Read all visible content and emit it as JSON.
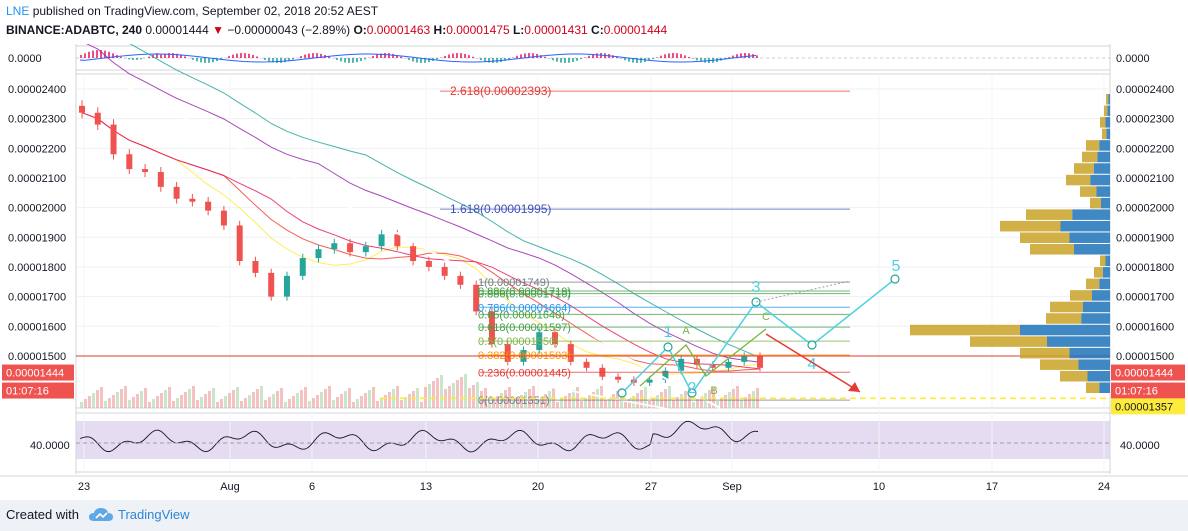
{
  "header": {
    "publisher": "LNE",
    "published_text": "published on TradingView.com, September 02, 2018 20:52 AEST",
    "symbol": "BINANCE:ADABTC, 240",
    "last": "0.00001444",
    "change_arrow": "▼",
    "change": "−0.00000043 (−2.89%)",
    "o_label": "O:",
    "o_value": "0.00001463",
    "h_label": "H:",
    "h_value": "0.00001475",
    "l_label": "L:",
    "l_value": "0.00001431",
    "c_label": "C:",
    "c_value": "0.00001444"
  },
  "footer": {
    "created_with": "Created with",
    "brand": "TradingView"
  },
  "chart_data": {
    "type": "candlestick",
    "title": "BINANCE:ADABTC, 240",
    "y_ticks": [
      "0.00002400",
      "0.00002300",
      "0.00002200",
      "0.00002100",
      "0.00002000",
      "0.00001900",
      "0.00001800",
      "0.00001700",
      "0.00001600",
      "0.00001500"
    ],
    "ylim": [
      1.4e-05,
      2.43e-05
    ],
    "x_ticks": [
      "23",
      "Aug",
      "6",
      "13",
      "20",
      "27",
      "Sep",
      "10",
      "17",
      "24"
    ],
    "macd_ticks": [
      "0.0000",
      "0.0000"
    ],
    "rsi_ticks": [
      "40.0000",
      "40.0000"
    ],
    "price_tags": [
      {
        "label": "0.00001444",
        "kind": "last",
        "color": "#ef5350"
      },
      {
        "label": "01:07:16",
        "kind": "countdown",
        "color": "#ef5350"
      },
      {
        "label": "0.00001357",
        "kind": "target",
        "color": "#ffeb3b"
      }
    ],
    "close_series": [
      2.32e-05,
      2.28e-05,
      2.18e-05,
      2.13e-05,
      2.12e-05,
      2.07e-05,
      2.03e-05,
      2.02e-05,
      1.99e-05,
      1.94e-05,
      1.82e-05,
      1.78e-05,
      1.7e-05,
      1.77e-05,
      1.83e-05,
      1.86e-05,
      1.88e-05,
      1.85e-05,
      1.87e-05,
      1.91e-05,
      1.87e-05,
      1.82e-05,
      1.8e-05,
      1.77e-05,
      1.74e-05,
      1.65e-05,
      1.54e-05,
      1.48e-05,
      1.52e-05,
      1.58e-05,
      1.54e-05,
      1.48e-05,
      1.46e-05,
      1.43e-05,
      1.42e-05,
      1.41e-05,
      1.42e-05,
      1.45e-05,
      1.49e-05,
      1.47e-05,
      1.46e-05,
      1.48e-05,
      1.5e-05,
      1.46e-05
    ],
    "fib_upper": [
      {
        "label": "2.618(0.00002393)",
        "value": 2.393e-05,
        "color": "#e53935"
      },
      {
        "label": "1.618(0.00001995)",
        "value": 1.995e-05,
        "color": "#3f51b5"
      }
    ],
    "fib_retracement": [
      {
        "label": "1(0.00001749)",
        "value": 1.749e-05,
        "color": "#787b86"
      },
      {
        "label": "0.886(0.00001719)",
        "value": 1.719e-05,
        "color": "#43a047"
      },
      {
        "label": "0.886(0.00001710)",
        "value": 1.71e-05,
        "color": "#43a047"
      },
      {
        "label": "0.786(0.00001664)",
        "value": 1.664e-05,
        "color": "#2196f3"
      },
      {
        "label": "0.65(0.00001640)",
        "value": 1.64e-05,
        "color": "#43a047"
      },
      {
        "label": "0.618(0.00001597)",
        "value": 1.597e-05,
        "color": "#43a047"
      },
      {
        "label": "0.5(0.00001550)",
        "value": 1.55e-05,
        "color": "#7cb342"
      },
      {
        "label": "0.382(0.00001503)",
        "value": 1.503e-05,
        "color": "#ff9800"
      },
      {
        "label": "0.236(0.00001445)",
        "value": 1.445e-05,
        "color": "#e53935"
      },
      {
        "label": "0(0.00001351)",
        "value": 1.351e-05,
        "color": "#787b86"
      }
    ],
    "wave_labels": [
      "1",
      "2",
      "3",
      "4",
      "5"
    ],
    "abc_labels": [
      "A",
      "B",
      "C"
    ],
    "volume_profile": [
      0.02,
      0.03,
      0.05,
      0.04,
      0.12,
      0.14,
      0.18,
      0.22,
      0.15,
      0.1,
      0.42,
      0.55,
      0.45,
      0.4,
      0.05,
      0.08,
      0.12,
      0.2,
      0.3,
      0.32,
      1.0,
      0.7,
      0.45,
      0.35,
      0.25,
      0.12
    ]
  }
}
